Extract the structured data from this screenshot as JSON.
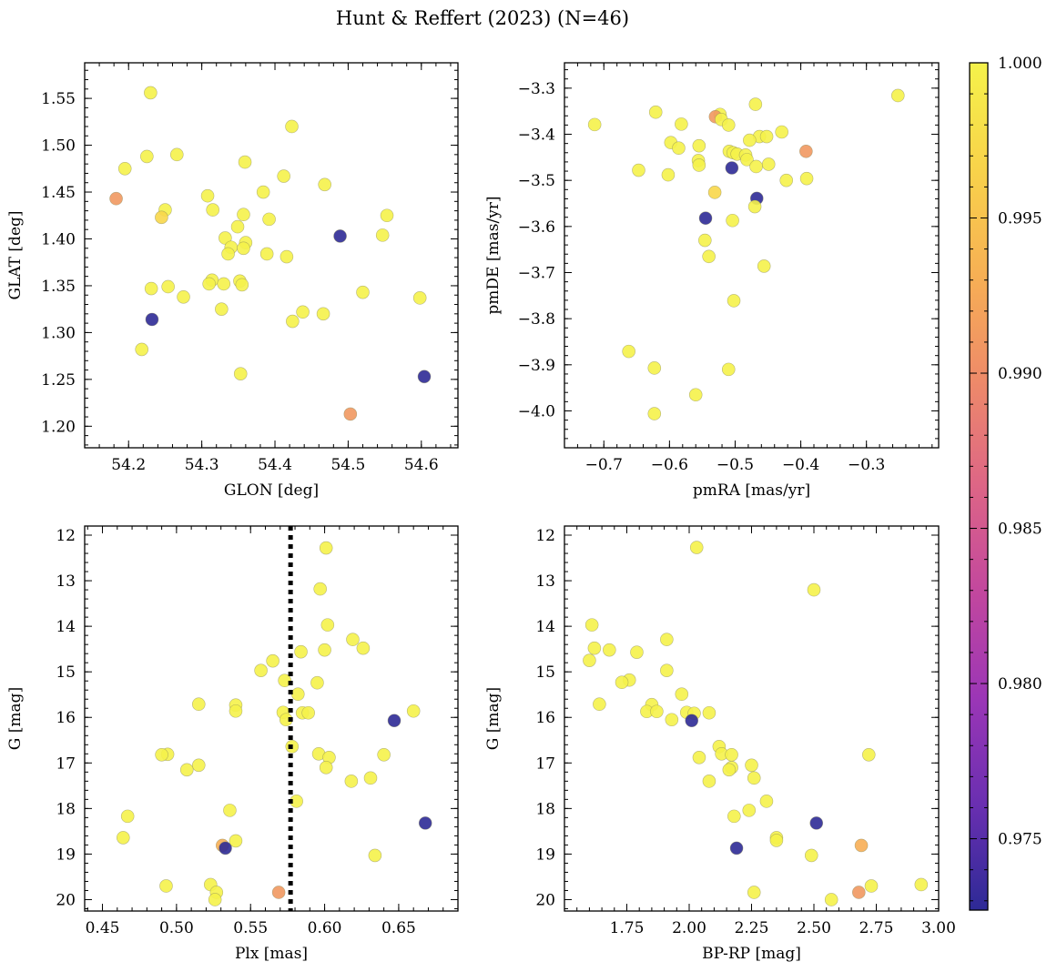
{
  "figure": {
    "suptitle": "Hunt & Reffert (2023) (N=46)"
  },
  "colorbar": {
    "min": 0.9727,
    "max": 1.0,
    "tick_values": [
      0.975,
      0.98,
      0.985,
      0.99,
      0.995,
      1.0
    ],
    "tick_labels": [
      "0.975",
      "0.980",
      "0.985",
      "0.990",
      "0.995",
      "1.000"
    ],
    "colormap": "plasma",
    "cmap_stops": [
      "#2d2a96",
      "#6a2fb1",
      "#9b36b6",
      "#c2479e",
      "#dd6586",
      "#ee8a69",
      "#f7b054",
      "#f8d34a",
      "#f5f24a"
    ]
  },
  "chart_data": [
    {
      "type": "scatter",
      "name": "position",
      "title": "",
      "xlabel": "GLON [deg]",
      "ylabel": "GLAT [deg]",
      "xlim": [
        54.14,
        54.65
      ],
      "ylim": [
        1.177,
        1.588
      ],
      "xticks": [
        54.2,
        54.3,
        54.4,
        54.5,
        54.6
      ],
      "xtick_labels": [
        "54.2",
        "54.3",
        "54.4",
        "54.5",
        "54.6"
      ],
      "yticks": [
        1.2,
        1.25,
        1.3,
        1.35,
        1.4,
        1.45,
        1.5,
        1.55
      ],
      "ytick_labels": [
        "1.20",
        "1.25",
        "1.30",
        "1.35",
        "1.40",
        "1.45",
        "1.50",
        "1.55"
      ],
      "invert_y": false,
      "points": [
        {
          "x": 54.23,
          "y": 1.556,
          "c": 1.0
        },
        {
          "x": 54.423,
          "y": 1.52,
          "c": 1.0
        },
        {
          "x": 54.225,
          "y": 1.488,
          "c": 1.0
        },
        {
          "x": 54.266,
          "y": 1.49,
          "c": 1.0
        },
        {
          "x": 54.195,
          "y": 1.475,
          "c": 1.0
        },
        {
          "x": 54.359,
          "y": 1.482,
          "c": 1.0
        },
        {
          "x": 54.412,
          "y": 1.467,
          "c": 1.0
        },
        {
          "x": 54.468,
          "y": 1.458,
          "c": 1.0
        },
        {
          "x": 54.384,
          "y": 1.45,
          "c": 1.0
        },
        {
          "x": 54.308,
          "y": 1.446,
          "c": 1.0
        },
        {
          "x": 54.183,
          "y": 1.443,
          "c": 0.991
        },
        {
          "x": 54.25,
          "y": 1.431,
          "c": 1.0
        },
        {
          "x": 54.315,
          "y": 1.431,
          "c": 1.0
        },
        {
          "x": 54.357,
          "y": 1.426,
          "c": 1.0
        },
        {
          "x": 54.553,
          "y": 1.425,
          "c": 1.0
        },
        {
          "x": 54.245,
          "y": 1.423,
          "c": 0.997
        },
        {
          "x": 54.392,
          "y": 1.421,
          "c": 1.0
        },
        {
          "x": 54.349,
          "y": 1.413,
          "c": 1.0
        },
        {
          "x": 54.547,
          "y": 1.404,
          "c": 1.0
        },
        {
          "x": 54.489,
          "y": 1.403,
          "c": 0.9727
        },
        {
          "x": 54.332,
          "y": 1.401,
          "c": 1.0
        },
        {
          "x": 54.36,
          "y": 1.396,
          "c": 1.0
        },
        {
          "x": 54.34,
          "y": 1.391,
          "c": 1.0
        },
        {
          "x": 54.357,
          "y": 1.39,
          "c": 1.0
        },
        {
          "x": 54.336,
          "y": 1.384,
          "c": 1.0
        },
        {
          "x": 54.389,
          "y": 1.384,
          "c": 1.0
        },
        {
          "x": 54.416,
          "y": 1.381,
          "c": 1.0
        },
        {
          "x": 54.314,
          "y": 1.356,
          "c": 1.0
        },
        {
          "x": 54.352,
          "y": 1.355,
          "c": 1.0
        },
        {
          "x": 54.31,
          "y": 1.352,
          "c": 1.0
        },
        {
          "x": 54.33,
          "y": 1.352,
          "c": 1.0
        },
        {
          "x": 54.355,
          "y": 1.351,
          "c": 1.0
        },
        {
          "x": 54.254,
          "y": 1.349,
          "c": 1.0
        },
        {
          "x": 54.231,
          "y": 1.347,
          "c": 1.0
        },
        {
          "x": 54.52,
          "y": 1.343,
          "c": 1.0
        },
        {
          "x": 54.275,
          "y": 1.338,
          "c": 1.0
        },
        {
          "x": 54.598,
          "y": 1.337,
          "c": 1.0
        },
        {
          "x": 54.327,
          "y": 1.325,
          "c": 1.0
        },
        {
          "x": 54.438,
          "y": 1.322,
          "c": 1.0
        },
        {
          "x": 54.466,
          "y": 1.32,
          "c": 1.0
        },
        {
          "x": 54.232,
          "y": 1.314,
          "c": 0.9727
        },
        {
          "x": 54.424,
          "y": 1.312,
          "c": 1.0
        },
        {
          "x": 54.218,
          "y": 1.282,
          "c": 1.0
        },
        {
          "x": 54.353,
          "y": 1.256,
          "c": 1.0
        },
        {
          "x": 54.604,
          "y": 1.253,
          "c": 0.9727
        },
        {
          "x": 54.503,
          "y": 1.213,
          "c": 0.991
        }
      ]
    },
    {
      "type": "scatter",
      "name": "proper-motion",
      "title": "",
      "xlabel": "pmRA [mas/yr]",
      "ylabel": "pmDE [mas/yr]",
      "xlim": [
        -0.76,
        -0.19
      ],
      "ylim": [
        -4.08,
        -3.245
      ],
      "xticks": [
        -0.7,
        -0.6,
        -0.5,
        -0.4,
        -0.3
      ],
      "xtick_labels": [
        "−0.7",
        "−0.6",
        "−0.5",
        "−0.4",
        "−0.3"
      ],
      "yticks": [
        -4.0,
        -3.9,
        -3.8,
        -3.7,
        -3.6,
        -3.5,
        -3.4,
        -3.3
      ],
      "ytick_labels": [
        "−4.0",
        "−3.9",
        "−3.8",
        "−3.7",
        "−3.6",
        "−3.5",
        "−3.4",
        "−3.3"
      ],
      "invert_y": false,
      "points": [
        {
          "x": -0.252,
          "y": -3.316,
          "c": 1.0
        },
        {
          "x": -0.469,
          "y": -3.335,
          "c": 1.0
        },
        {
          "x": -0.621,
          "y": -3.352,
          "c": 1.0
        },
        {
          "x": -0.523,
          "y": -3.357,
          "c": 1.0
        },
        {
          "x": -0.53,
          "y": -3.362,
          "c": 0.991
        },
        {
          "x": -0.521,
          "y": -3.368,
          "c": 1.0
        },
        {
          "x": -0.714,
          "y": -3.379,
          "c": 1.0
        },
        {
          "x": -0.582,
          "y": -3.378,
          "c": 1.0
        },
        {
          "x": -0.51,
          "y": -3.38,
          "c": 1.0
        },
        {
          "x": -0.429,
          "y": -3.395,
          "c": 1.0
        },
        {
          "x": -0.463,
          "y": -3.405,
          "c": 1.0
        },
        {
          "x": -0.452,
          "y": -3.405,
          "c": 1.0
        },
        {
          "x": -0.478,
          "y": -3.413,
          "c": 1.0
        },
        {
          "x": -0.598,
          "y": -3.418,
          "c": 1.0
        },
        {
          "x": -0.555,
          "y": -3.425,
          "c": 1.0
        },
        {
          "x": -0.586,
          "y": -3.43,
          "c": 1.0
        },
        {
          "x": -0.509,
          "y": -3.437,
          "c": 1.0
        },
        {
          "x": -0.392,
          "y": -3.437,
          "c": 0.991
        },
        {
          "x": -0.503,
          "y": -3.44,
          "c": 1.0
        },
        {
          "x": -0.497,
          "y": -3.443,
          "c": 1.0
        },
        {
          "x": -0.484,
          "y": -3.445,
          "c": 1.0
        },
        {
          "x": -0.482,
          "y": -3.455,
          "c": 1.0
        },
        {
          "x": -0.556,
          "y": -3.457,
          "c": 1.0
        },
        {
          "x": -0.449,
          "y": -3.465,
          "c": 1.0
        },
        {
          "x": -0.555,
          "y": -3.467,
          "c": 1.0
        },
        {
          "x": -0.468,
          "y": -3.47,
          "c": 1.0
        },
        {
          "x": -0.505,
          "y": -3.473,
          "c": 0.9727
        },
        {
          "x": -0.647,
          "y": -3.478,
          "c": 1.0
        },
        {
          "x": -0.602,
          "y": -3.488,
          "c": 1.0
        },
        {
          "x": -0.391,
          "y": -3.496,
          "c": 1.0
        },
        {
          "x": -0.422,
          "y": -3.5,
          "c": 1.0
        },
        {
          "x": -0.531,
          "y": -3.526,
          "c": 0.997
        },
        {
          "x": -0.467,
          "y": -3.539,
          "c": 0.9727
        },
        {
          "x": -0.47,
          "y": -3.557,
          "c": 1.0
        },
        {
          "x": -0.545,
          "y": -3.582,
          "c": 0.9727
        },
        {
          "x": -0.504,
          "y": -3.587,
          "c": 1.0
        },
        {
          "x": -0.546,
          "y": -3.63,
          "c": 1.0
        },
        {
          "x": -0.54,
          "y": -3.665,
          "c": 1.0
        },
        {
          "x": -0.456,
          "y": -3.686,
          "c": 1.0
        },
        {
          "x": -0.502,
          "y": -3.761,
          "c": 1.0
        },
        {
          "x": -0.662,
          "y": -3.871,
          "c": 1.0
        },
        {
          "x": -0.623,
          "y": -3.907,
          "c": 1.0
        },
        {
          "x": -0.51,
          "y": -3.91,
          "c": 1.0
        },
        {
          "x": -0.56,
          "y": -3.965,
          "c": 1.0
        },
        {
          "x": -0.623,
          "y": -4.006,
          "c": 1.0
        }
      ]
    },
    {
      "type": "scatter",
      "name": "parallax-magnitude",
      "title": "",
      "xlabel": "Plx [mas]",
      "ylabel": "G [mag]",
      "xlim": [
        0.438,
        0.69
      ],
      "ylim": [
        20.25,
        11.8
      ],
      "xticks": [
        0.45,
        0.5,
        0.55,
        0.6,
        0.65
      ],
      "xtick_labels": [
        "0.45",
        "0.50",
        "0.55",
        "0.60",
        "0.65"
      ],
      "yticks": [
        12,
        13,
        14,
        15,
        16,
        17,
        18,
        19,
        20
      ],
      "ytick_labels": [
        "12",
        "13",
        "14",
        "15",
        "16",
        "17",
        "18",
        "19",
        "20"
      ],
      "invert_y": true,
      "vline": {
        "x": 0.577,
        "style": "dotted"
      },
      "points": [
        {
          "x": 0.601,
          "y": 12.28,
          "c": 1.0
        },
        {
          "x": 0.597,
          "y": 13.18,
          "c": 1.0
        },
        {
          "x": 0.602,
          "y": 13.97,
          "c": 1.0
        },
        {
          "x": 0.619,
          "y": 14.29,
          "c": 1.0
        },
        {
          "x": 0.626,
          "y": 14.48,
          "c": 1.0
        },
        {
          "x": 0.6,
          "y": 14.52,
          "c": 1.0
        },
        {
          "x": 0.584,
          "y": 14.56,
          "c": 1.0
        },
        {
          "x": 0.565,
          "y": 14.76,
          "c": 1.0
        },
        {
          "x": 0.557,
          "y": 14.97,
          "c": 1.0
        },
        {
          "x": 0.573,
          "y": 15.19,
          "c": 1.0
        },
        {
          "x": 0.595,
          "y": 15.24,
          "c": 1.0
        },
        {
          "x": 0.582,
          "y": 15.49,
          "c": 1.0
        },
        {
          "x": 0.515,
          "y": 15.71,
          "c": 1.0
        },
        {
          "x": 0.54,
          "y": 15.73,
          "c": 1.0
        },
        {
          "x": 0.54,
          "y": 15.86,
          "c": 1.0
        },
        {
          "x": 0.66,
          "y": 15.86,
          "c": 1.0
        },
        {
          "x": 0.572,
          "y": 15.89,
          "c": 1.0
        },
        {
          "x": 0.585,
          "y": 15.9,
          "c": 1.0
        },
        {
          "x": 0.589,
          "y": 15.9,
          "c": 1.0
        },
        {
          "x": 0.574,
          "y": 16.05,
          "c": 1.0
        },
        {
          "x": 0.647,
          "y": 16.07,
          "c": 0.9727
        },
        {
          "x": 0.578,
          "y": 16.64,
          "c": 1.0
        },
        {
          "x": 0.596,
          "y": 16.8,
          "c": 1.0
        },
        {
          "x": 0.494,
          "y": 16.81,
          "c": 1.0
        },
        {
          "x": 0.49,
          "y": 16.82,
          "c": 1.0
        },
        {
          "x": 0.64,
          "y": 16.82,
          "c": 1.0
        },
        {
          "x": 0.603,
          "y": 16.88,
          "c": 1.0
        },
        {
          "x": 0.515,
          "y": 17.05,
          "c": 1.0
        },
        {
          "x": 0.601,
          "y": 17.1,
          "c": 1.0
        },
        {
          "x": 0.507,
          "y": 17.15,
          "c": 1.0
        },
        {
          "x": 0.631,
          "y": 17.33,
          "c": 1.0
        },
        {
          "x": 0.618,
          "y": 17.4,
          "c": 1.0
        },
        {
          "x": 0.581,
          "y": 17.84,
          "c": 1.0
        },
        {
          "x": 0.536,
          "y": 18.04,
          "c": 1.0
        },
        {
          "x": 0.467,
          "y": 18.17,
          "c": 1.0
        },
        {
          "x": 0.668,
          "y": 18.32,
          "c": 0.9727
        },
        {
          "x": 0.464,
          "y": 18.64,
          "c": 1.0
        },
        {
          "x": 0.54,
          "y": 18.71,
          "c": 1.0
        },
        {
          "x": 0.531,
          "y": 18.81,
          "c": 0.993
        },
        {
          "x": 0.533,
          "y": 18.87,
          "c": 0.9727
        },
        {
          "x": 0.634,
          "y": 19.03,
          "c": 1.0
        },
        {
          "x": 0.523,
          "y": 19.67,
          "c": 1.0
        },
        {
          "x": 0.493,
          "y": 19.7,
          "c": 1.0
        },
        {
          "x": 0.527,
          "y": 19.84,
          "c": 1.0
        },
        {
          "x": 0.569,
          "y": 19.84,
          "c": 0.991
        },
        {
          "x": 0.526,
          "y": 20.0,
          "c": 1.0
        }
      ]
    },
    {
      "type": "scatter",
      "name": "color-magnitude",
      "title": "",
      "xlabel": "BP-RP [mag]",
      "ylabel": "G [mag]",
      "xlim": [
        1.5,
        3.0
      ],
      "ylim": [
        20.25,
        11.8
      ],
      "xticks": [
        1.75,
        2.0,
        2.25,
        2.5,
        2.75,
        3.0
      ],
      "xtick_labels": [
        "1.75",
        "2.00",
        "2.25",
        "2.50",
        "2.75",
        "3.00"
      ],
      "yticks": [
        12,
        13,
        14,
        15,
        16,
        17,
        18,
        19,
        20
      ],
      "ytick_labels": [
        "12",
        "13",
        "14",
        "15",
        "16",
        "17",
        "18",
        "19",
        "20"
      ],
      "invert_y": true,
      "points": [
        {
          "x": 2.03,
          "y": 12.27,
          "c": 1.0
        },
        {
          "x": 2.5,
          "y": 13.2,
          "c": 1.0
        },
        {
          "x": 1.61,
          "y": 13.97,
          "c": 1.0
        },
        {
          "x": 1.91,
          "y": 14.29,
          "c": 1.0
        },
        {
          "x": 1.62,
          "y": 14.48,
          "c": 1.0
        },
        {
          "x": 1.68,
          "y": 14.52,
          "c": 1.0
        },
        {
          "x": 1.79,
          "y": 14.57,
          "c": 1.0
        },
        {
          "x": 1.6,
          "y": 14.75,
          "c": 1.0
        },
        {
          "x": 1.91,
          "y": 14.97,
          "c": 1.0
        },
        {
          "x": 1.76,
          "y": 15.18,
          "c": 1.0
        },
        {
          "x": 1.73,
          "y": 15.23,
          "c": 1.0
        },
        {
          "x": 1.97,
          "y": 15.49,
          "c": 1.0
        },
        {
          "x": 1.64,
          "y": 15.71,
          "c": 1.0
        },
        {
          "x": 1.85,
          "y": 15.72,
          "c": 1.0
        },
        {
          "x": 1.83,
          "y": 15.87,
          "c": 1.0
        },
        {
          "x": 1.87,
          "y": 15.87,
          "c": 1.0
        },
        {
          "x": 1.99,
          "y": 15.89,
          "c": 1.0
        },
        {
          "x": 2.02,
          "y": 15.91,
          "c": 1.0
        },
        {
          "x": 2.08,
          "y": 15.9,
          "c": 1.0
        },
        {
          "x": 1.93,
          "y": 16.05,
          "c": 1.0
        },
        {
          "x": 2.01,
          "y": 16.07,
          "c": 0.9727
        },
        {
          "x": 2.12,
          "y": 16.64,
          "c": 1.0
        },
        {
          "x": 2.13,
          "y": 16.8,
          "c": 1.0
        },
        {
          "x": 2.17,
          "y": 16.82,
          "c": 1.0
        },
        {
          "x": 2.72,
          "y": 16.82,
          "c": 1.0
        },
        {
          "x": 2.04,
          "y": 16.88,
          "c": 1.0
        },
        {
          "x": 2.25,
          "y": 17.05,
          "c": 1.0
        },
        {
          "x": 2.17,
          "y": 17.1,
          "c": 1.0
        },
        {
          "x": 2.16,
          "y": 17.15,
          "c": 1.0
        },
        {
          "x": 2.26,
          "y": 17.33,
          "c": 1.0
        },
        {
          "x": 2.08,
          "y": 17.4,
          "c": 1.0
        },
        {
          "x": 2.31,
          "y": 17.84,
          "c": 1.0
        },
        {
          "x": 2.24,
          "y": 18.04,
          "c": 1.0
        },
        {
          "x": 2.18,
          "y": 18.17,
          "c": 1.0
        },
        {
          "x": 2.51,
          "y": 18.32,
          "c": 0.9727
        },
        {
          "x": 2.35,
          "y": 18.64,
          "c": 1.0
        },
        {
          "x": 2.35,
          "y": 18.7,
          "c": 1.0
        },
        {
          "x": 2.69,
          "y": 18.81,
          "c": 0.993
        },
        {
          "x": 2.19,
          "y": 18.87,
          "c": 0.9727
        },
        {
          "x": 2.49,
          "y": 19.03,
          "c": 1.0
        },
        {
          "x": 2.93,
          "y": 19.67,
          "c": 1.0
        },
        {
          "x": 2.73,
          "y": 19.7,
          "c": 1.0
        },
        {
          "x": 2.26,
          "y": 19.84,
          "c": 1.0
        },
        {
          "x": 2.68,
          "y": 19.84,
          "c": 0.991
        },
        {
          "x": 2.57,
          "y": 20.0,
          "c": 1.0
        }
      ]
    }
  ]
}
